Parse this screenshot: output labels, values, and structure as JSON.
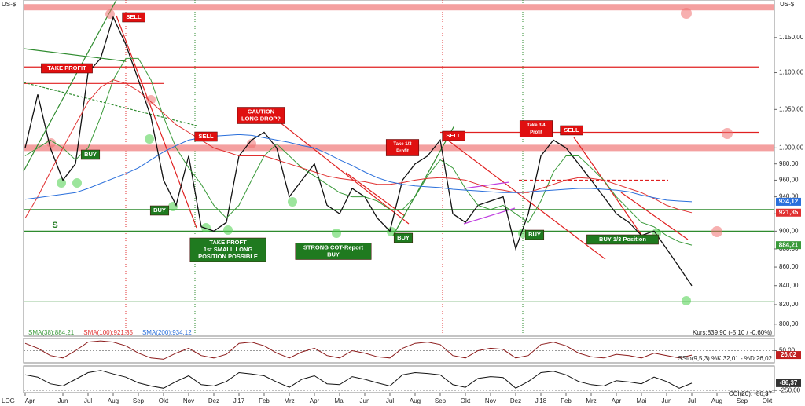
{
  "chart_data": [
    {
      "type": "line",
      "axis_label": "US-$",
      "log_scale": true,
      "categories": [
        "Apr",
        null,
        null,
        "Jun",
        null,
        "Jul",
        null,
        "Aug",
        null,
        "Sep",
        null,
        "Okt",
        null,
        "Nov",
        null,
        "Dez",
        null,
        "J'17",
        null,
        "Feb",
        null,
        "Mrz",
        null,
        "Apr",
        null,
        "Mai",
        null,
        "Jun",
        null,
        "Jul",
        null,
        "Aug",
        null,
        "Sep",
        null,
        "Okt",
        null,
        "Nov",
        null,
        "Dez",
        null,
        "J'18",
        null,
        "Feb",
        null,
        "Mrz",
        null,
        "Apr",
        null,
        "Mai",
        null,
        "Jun",
        null,
        "Jul",
        null,
        "Aug",
        null,
        "Sep",
        null,
        "Okt"
      ],
      "ylim": [
        788,
        1206
      ],
      "yticks": [
        {
          "value": 800,
          "label": "800,00"
        },
        {
          "value": 820,
          "label": "820,00"
        },
        {
          "value": 840,
          "label": "840,00"
        },
        {
          "value": 860,
          "label": "860,00"
        },
        {
          "value": 880,
          "label": "880,00"
        },
        {
          "value": 900,
          "label": "900,00"
        },
        {
          "value": 920,
          "label": "920,00"
        },
        {
          "value": 940,
          "label": "940,00"
        },
        {
          "value": 960,
          "label": "960,00"
        },
        {
          "value": 980,
          "label": "980,00"
        },
        {
          "value": 1000,
          "label": "1.000,00"
        },
        {
          "value": 1050,
          "label": "1.050,00"
        },
        {
          "value": 1100,
          "label": "1.100,00"
        },
        {
          "value": 1150,
          "label": "1.150,00"
        }
      ],
      "series": [
        {
          "color": "#111111",
          "values": [
            1000,
            1070,
            1000,
            960,
            980,
            1100,
            1120,
            1180,
            1140,
            1090,
            1040,
            960,
            930,
            990,
            905,
            900,
            910,
            990,
            1010,
            1020,
            1000,
            940,
            960,
            980,
            930,
            920,
            950,
            940,
            915,
            900,
            960,
            980,
            990,
            1010,
            920,
            910,
            930,
            935,
            940,
            880,
            920,
            990,
            1010,
            1000,
            980,
            960,
            940,
            920,
            910,
            895,
            900,
            880,
            860,
            839.9,
            null,
            null,
            null,
            null,
            null,
            null
          ]
        },
        {
          "name": "SMA(38):884,21",
          "color": "#3a9a3a",
          "end_label": "884,21",
          "values": [
            990,
            1000,
            1010,
            1000,
            985,
            1000,
            1040,
            1090,
            1120,
            1120,
            1090,
            1040,
            1000,
            975,
            955,
            930,
            915,
            930,
            960,
            990,
            1005,
            990,
            975,
            965,
            955,
            945,
            940,
            940,
            935,
            925,
            925,
            940,
            965,
            985,
            975,
            950,
            930,
            925,
            930,
            920,
            910,
            935,
            970,
            990,
            990,
            975,
            960,
            940,
            925,
            910,
            905,
            895,
            888,
            884.21,
            null,
            null,
            null,
            null,
            null,
            null
          ]
        },
        {
          "name": "SMA(100):921,35",
          "color": "#e03030",
          "end_label": "921,35",
          "values": [
            915,
            940,
            970,
            1000,
            1030,
            1060,
            1080,
            1090,
            1085,
            1075,
            1060,
            1045,
            1030,
            1020,
            1010,
            1000,
            995,
            990,
            990,
            990,
            985,
            980,
            975,
            970,
            965,
            962,
            960,
            958,
            955,
            955,
            957,
            960,
            962,
            963,
            962,
            960,
            955,
            950,
            948,
            945,
            945,
            950,
            955,
            960,
            963,
            962,
            960,
            955,
            950,
            945,
            938,
            930,
            925,
            921.35,
            null,
            null,
            null,
            null,
            null,
            null
          ]
        },
        {
          "name": "SMA(200):934,12",
          "color": "#2a6fdb",
          "end_label": "934,12",
          "values": [
            937,
            939,
            941,
            943,
            945,
            950,
            956,
            962,
            968,
            975,
            985,
            995,
            1003,
            1010,
            1013,
            1015,
            1016,
            1017,
            1016,
            1013,
            1010,
            1007,
            1003,
            1000,
            993,
            985,
            978,
            970,
            963,
            958,
            955,
            953,
            952,
            951,
            949,
            948,
            947,
            946,
            945,
            945,
            946,
            947,
            948,
            949,
            950,
            950,
            949,
            948,
            946,
            942,
            939,
            936,
            935,
            934.12,
            null,
            null,
            null,
            null,
            null,
            null
          ]
        }
      ],
      "quote": "Kurs:839,90 (-5,10 / -0,60%)",
      "scale_note": "LOG",
      "levels": [
        {
          "value": 1195,
          "color": "#f4a0a0",
          "style": "band"
        },
        {
          "value": 1000,
          "color": "#f4a0a0",
          "style": "band"
        },
        {
          "value": 1108,
          "color": "#e02020",
          "style": "line"
        },
        {
          "value": 1085,
          "color": "#e02020",
          "style": "line"
        },
        {
          "value": 1020,
          "color": "#e02020",
          "style": "line"
        },
        {
          "value": 960,
          "color": "#e02020",
          "style": "dash"
        },
        {
          "value": 925,
          "color": "#2e8b2e",
          "style": "line"
        },
        {
          "value": 900,
          "color": "#2e8b2e",
          "style": "line"
        },
        {
          "value": 823,
          "color": "#2e8b2e",
          "style": "line"
        }
      ],
      "annotations": [
        {
          "color": "#e01010",
          "lines": [
            "SELL"
          ]
        },
        {
          "color": "#e01010",
          "lines": [
            "TAKE PROFIT"
          ]
        },
        {
          "color": "#1f7a1f",
          "lines": [
            "BUY"
          ]
        },
        {
          "color": "#e01010",
          "lines": [
            "SELL"
          ]
        },
        {
          "color": "#e01010",
          "lines": [
            "CAUTION",
            "LONG DROP?"
          ]
        },
        {
          "color": "#1f7a1f",
          "lines": [
            "BUY"
          ]
        },
        {
          "color": "#1f7a1f",
          "lines": [
            "TAKE PROFT",
            "1st SMALL LONG",
            "POSITION POSSIBLE"
          ]
        },
        {
          "color": "#1f7a1f",
          "lines": [
            "STRONG COT-Report",
            "BUY"
          ]
        },
        {
          "color": "#e01010",
          "lines": [
            "Take 1/3",
            "Profit"
          ]
        },
        {
          "color": "#e01010",
          "lines": [
            "SELL"
          ]
        },
        {
          "color": "#1f7a1f",
          "lines": [
            "BUY"
          ]
        },
        {
          "color": "#1f7a1f",
          "lines": [
            "BUY"
          ]
        },
        {
          "color": "#e01010",
          "lines": [
            "Take 3/4",
            "Profit"
          ]
        },
        {
          "color": "#e01010",
          "lines": [
            "SELL"
          ]
        },
        {
          "color": "#1f7a1f",
          "lines": [
            "BUY 1/3 Position"
          ]
        },
        {
          "color": "none",
          "lines": [
            "S"
          ]
        }
      ]
    },
    {
      "type": "line",
      "ylim": [
        0,
        100
      ],
      "yticks": [
        {
          "value": 50,
          "label": "50,00"
        }
      ],
      "legend_text": "SSto(9,5,3) %K:32,01 - %D:26,02",
      "end_label": "26,02",
      "series": [
        {
          "color": "#8b1a1a",
          "values": [
            80,
            60,
            30,
            20,
            50,
            85,
            90,
            85,
            70,
            40,
            20,
            15,
            40,
            60,
            30,
            20,
            35,
            80,
            85,
            70,
            40,
            20,
            45,
            60,
            30,
            20,
            50,
            40,
            25,
            20,
            60,
            80,
            85,
            75,
            30,
            20,
            50,
            60,
            55,
            20,
            30,
            75,
            85,
            70,
            40,
            25,
            20,
            35,
            30,
            20,
            40,
            30,
            20,
            32.01
          ]
        }
      ]
    },
    {
      "type": "line",
      "ylim": [
        -300,
        300
      ],
      "yticks": [
        {
          "value": -250,
          "label": "-250,00"
        }
      ],
      "legend_text": "CCI(20): -86,37",
      "end_label": "-86,37",
      "series": [
        {
          "color": "#111111",
          "values": [
            100,
            50,
            -100,
            -150,
            0,
            150,
            200,
            120,
            50,
            -80,
            -150,
            -200,
            -50,
            80,
            -120,
            -150,
            -50,
            150,
            120,
            80,
            -60,
            -180,
            0,
            80,
            -100,
            -120,
            60,
            0,
            -80,
            -150,
            100,
            150,
            130,
            100,
            -120,
            -180,
            20,
            60,
            40,
            -200,
            -50,
            150,
            180,
            100,
            -50,
            -120,
            -150,
            -30,
            -60,
            -100,
            50,
            -50,
            -200,
            -86.37
          ]
        }
      ]
    }
  ]
}
